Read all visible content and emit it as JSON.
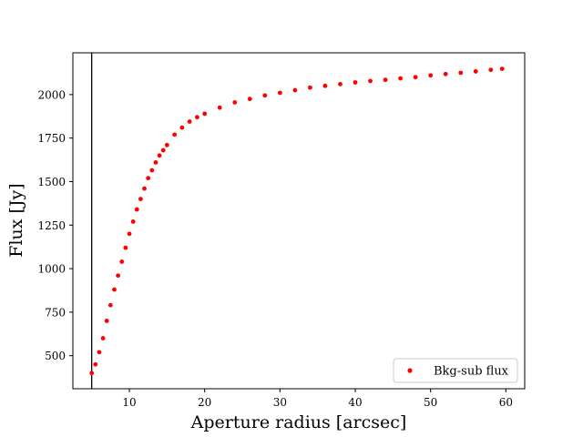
{
  "chart_data": {
    "type": "scatter",
    "title": "",
    "xlabel": "Aperture radius [arcsec]",
    "ylabel": "Flux [Jy]",
    "xlim": [
      2.5,
      62.5
    ],
    "ylim": [
      310,
      2240
    ],
    "xticks": [
      10,
      20,
      30,
      40,
      50,
      60
    ],
    "yticks": [
      500,
      750,
      1000,
      1250,
      1500,
      1750,
      2000
    ],
    "grid": false,
    "legend_position": "bottom-right",
    "vertical_line_x": 5.0,
    "colors": {
      "points": "#ff0000",
      "vline": "#000000",
      "frame": "#000000"
    },
    "series": [
      {
        "name": "Bkg-sub flux",
        "marker": "dot",
        "x": [
          5.0,
          5.5,
          6.0,
          6.5,
          7.0,
          7.5,
          8.0,
          8.5,
          9.0,
          9.5,
          10.0,
          10.5,
          11.0,
          11.5,
          12.0,
          12.5,
          13.0,
          13.5,
          14.0,
          14.5,
          15.0,
          16.0,
          17.0,
          18.0,
          19.0,
          20.0,
          22.0,
          24.0,
          26.0,
          28.0,
          30.0,
          32.0,
          34.0,
          36.0,
          38.0,
          40.0,
          42.0,
          44.0,
          46.0,
          48.0,
          50.0,
          52.0,
          54.0,
          56.0,
          58.0,
          59.5
        ],
        "y": [
          400,
          450,
          520,
          600,
          700,
          790,
          880,
          960,
          1040,
          1120,
          1200,
          1270,
          1340,
          1400,
          1460,
          1520,
          1565,
          1610,
          1650,
          1680,
          1710,
          1770,
          1810,
          1845,
          1870,
          1890,
          1925,
          1955,
          1975,
          1995,
          2010,
          2025,
          2040,
          2050,
          2060,
          2070,
          2078,
          2085,
          2093,
          2100,
          2110,
          2118,
          2125,
          2133,
          2142,
          2148
        ]
      }
    ]
  }
}
